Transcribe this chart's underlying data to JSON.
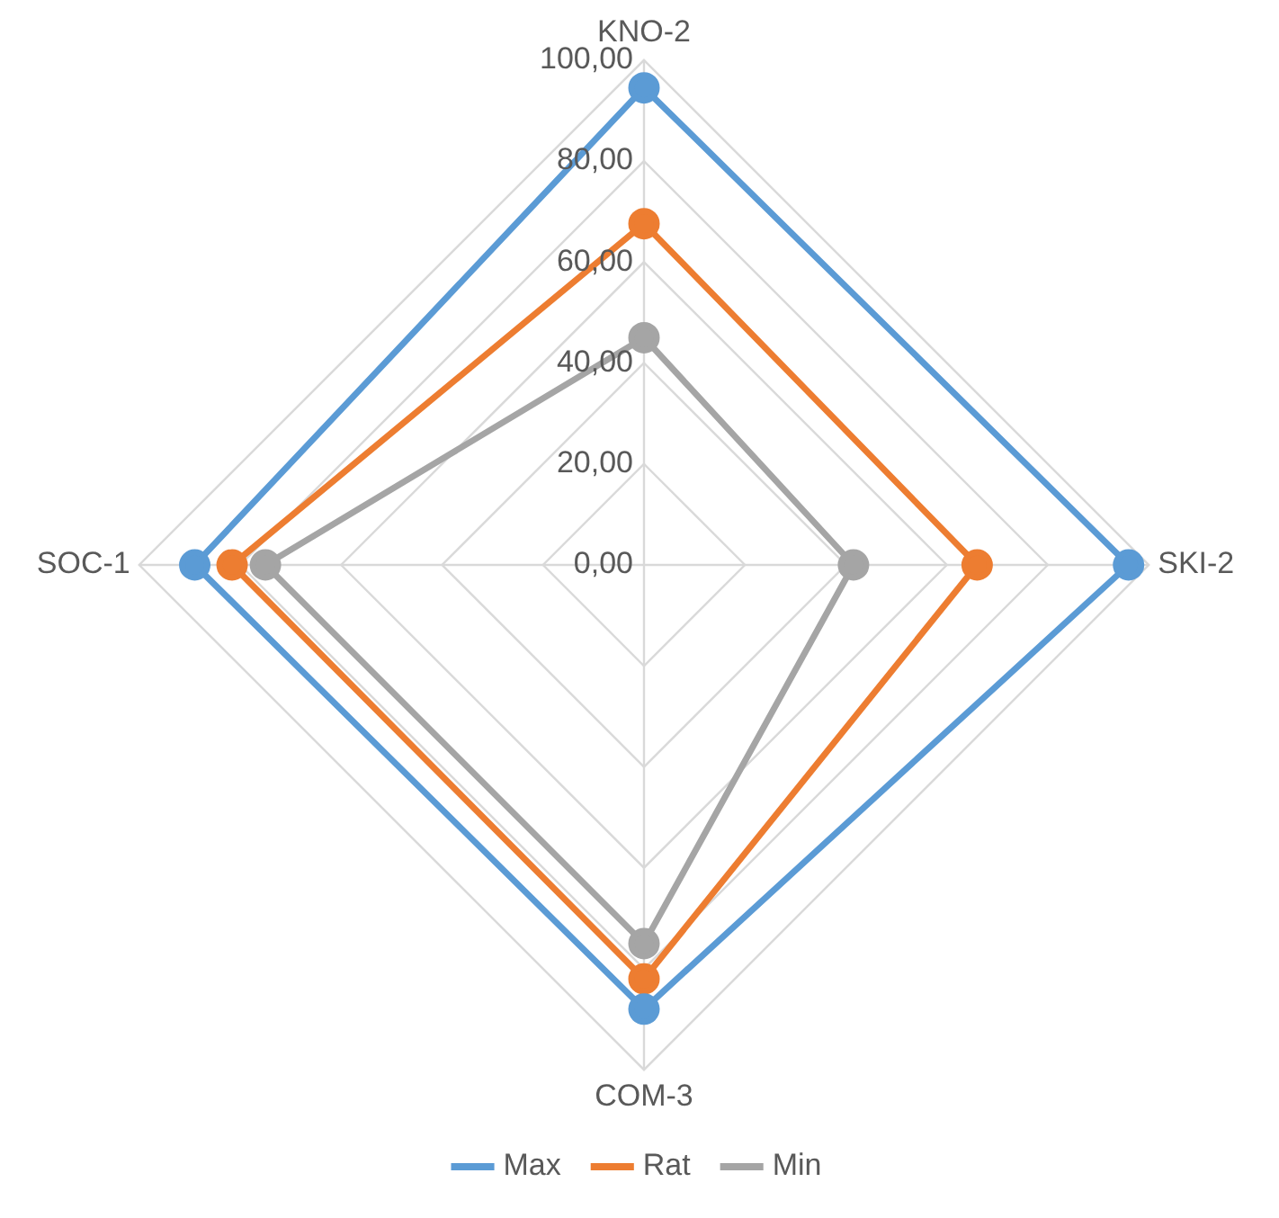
{
  "chart_data": {
    "type": "radar",
    "categories": [
      "KNO-2",
      "SKI-2",
      "COM-3",
      "SOC-1"
    ],
    "series": [
      {
        "name": "Max",
        "color": "#5b9bd5",
        "values": [
          94.5,
          96,
          88,
          89
        ]
      },
      {
        "name": "Rat",
        "color": "#ed7d31",
        "values": [
          67.6,
          66,
          82,
          81.6
        ]
      },
      {
        "name": "Min",
        "color": "#a5a5a5",
        "values": [
          45,
          41.5,
          75,
          75
        ]
      }
    ],
    "ylim": [
      0,
      100
    ],
    "yticks": [
      {
        "value": 0,
        "label": "0,00"
      },
      {
        "value": 20,
        "label": "20,00"
      },
      {
        "value": 40,
        "label": "40,00"
      },
      {
        "value": 60,
        "label": "60,00"
      },
      {
        "value": 80,
        "label": "80,00"
      },
      {
        "value": 100,
        "label": "100,00"
      }
    ],
    "grid": true,
    "legend": "bottom",
    "marker": "circle"
  }
}
